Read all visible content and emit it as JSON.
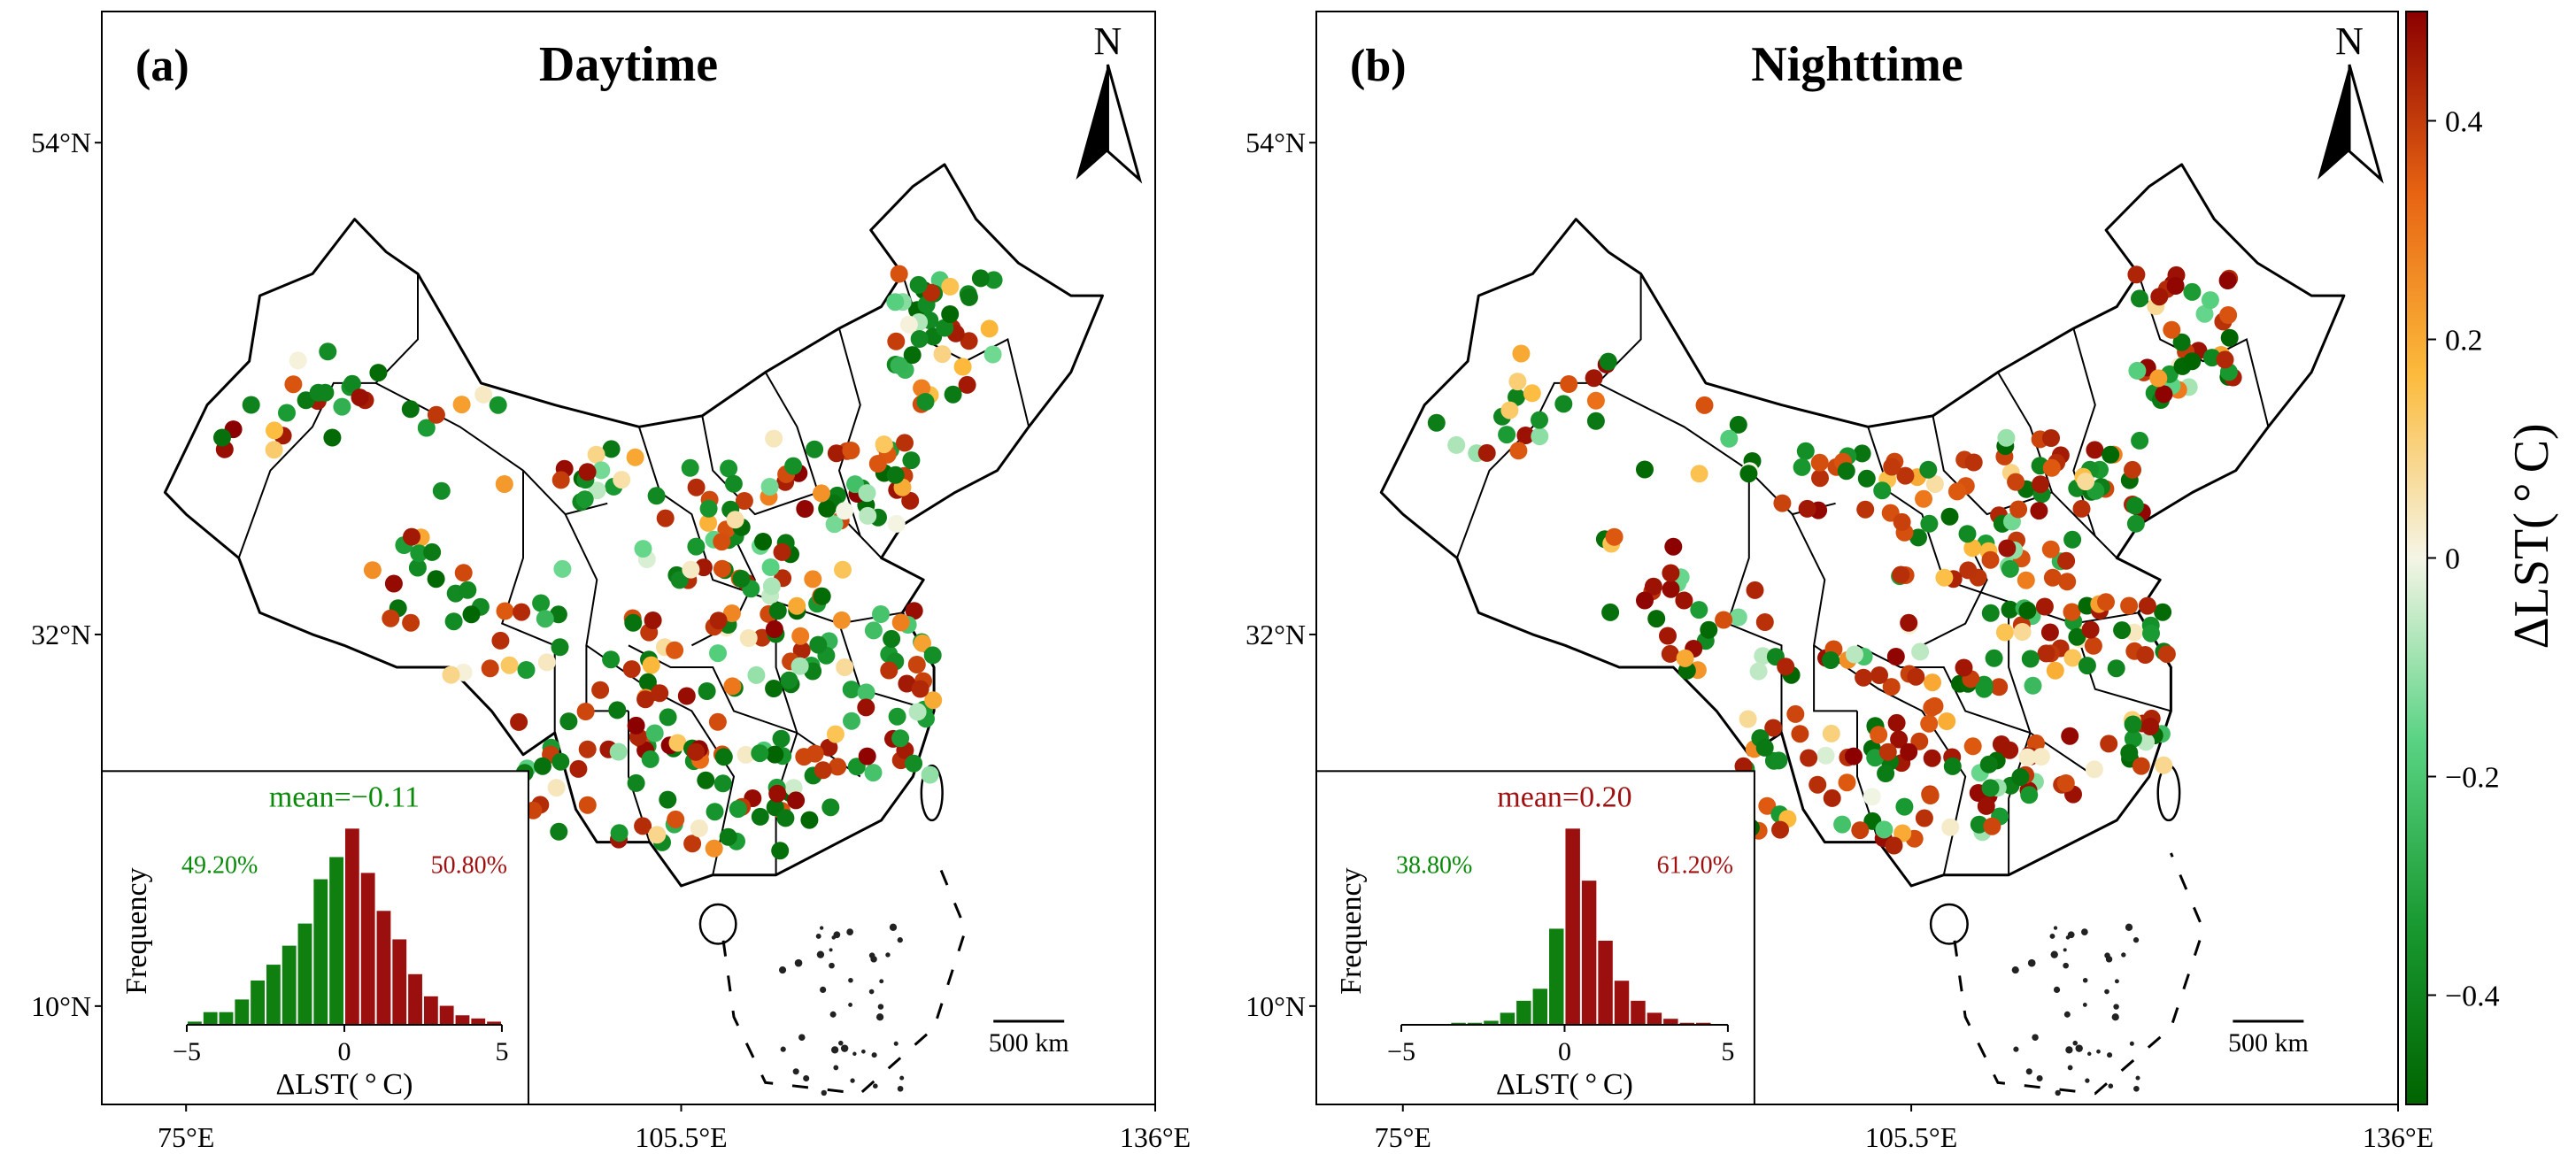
{
  "panels": [
    {
      "label": "(a)",
      "title": "Daytime",
      "north": "N",
      "scale_label": "500 km",
      "lat_ticks": [
        "54°N",
        "32°N",
        "10°N"
      ],
      "lon_ticks": [
        "75°E",
        "105.5°E",
        "136°E"
      ],
      "inset": {
        "mean_label": "mean=−0.11",
        "mean_color": "#0a8a0a",
        "neg_pct": "49.20%",
        "pos_pct": "50.80%",
        "ylabel": "Frequency",
        "xlabel": "ΔLST( ° C)",
        "xticks": [
          "−5",
          "0",
          "5"
        ],
        "bin_edges": [
          -5,
          -4.5,
          -4,
          -3.5,
          -3,
          -2.5,
          -2,
          -1.5,
          -1,
          -0.5,
          0,
          0.5,
          1,
          1.5,
          2,
          2.5,
          3,
          3.5,
          4,
          4.5,
          5
        ],
        "counts": [
          1,
          4,
          4,
          8,
          14,
          19,
          25,
          32,
          46,
          53,
          62,
          48,
          36,
          27,
          16,
          9,
          6,
          3,
          2,
          1
        ]
      },
      "seed": 11,
      "warm_bias": 0.45
    },
    {
      "label": "(b)",
      "title": "Nighttime",
      "north": "N",
      "scale_label": "500 km",
      "lat_ticks": [
        "54°N",
        "32°N",
        "10°N"
      ],
      "lon_ticks": [
        "75°E",
        "105.5°E",
        "136°E"
      ],
      "inset": {
        "mean_label": "mean=0.20",
        "mean_color": "#a01010",
        "neg_pct": "38.80%",
        "pos_pct": "61.20%",
        "ylabel": "Frequency",
        "xlabel": "ΔLST( ° C)",
        "xticks": [
          "−5",
          "0",
          "5"
        ],
        "bin_edges": [
          -5,
          -4.5,
          -4,
          -3.5,
          -3,
          -2.5,
          -2,
          -1.5,
          -1,
          -0.5,
          0,
          0.5,
          1,
          1.5,
          2,
          2.5,
          3,
          3.5,
          4,
          4.5,
          5
        ],
        "counts": [
          0,
          0,
          0,
          1,
          1,
          2,
          6,
          12,
          18,
          48,
          98,
          72,
          42,
          22,
          12,
          6,
          3,
          1,
          1,
          0
        ]
      },
      "seed": 29,
      "warm_bias": 0.62
    }
  ],
  "colorbar": {
    "label": "ΔLST( ° C)",
    "range": [
      -0.5,
      0.5
    ],
    "ticks": [
      {
        "value": 0.4,
        "label": "0.4"
      },
      {
        "value": 0.2,
        "label": "0.2"
      },
      {
        "value": 0,
        "label": "0"
      },
      {
        "value": -0.2,
        "label": "−0.2"
      },
      {
        "value": -0.4,
        "label": "−0.4"
      }
    ],
    "stops": [
      "#006400",
      "#1a9a32",
      "#59d383",
      "#f5f5e6",
      "#fcbb3c",
      "#e86412",
      "#8b0000"
    ]
  }
}
